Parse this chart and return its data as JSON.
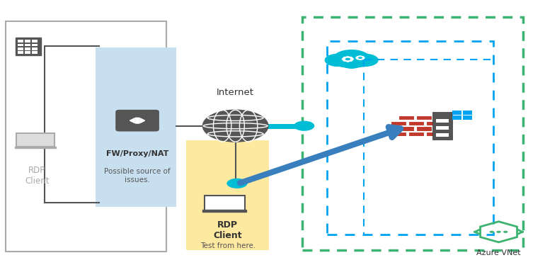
{
  "bg_color": "#ffffff",
  "colors": {
    "green_dashed": "#3cb371",
    "blue_dashed": "#00a4ef",
    "cyan": "#00bcd4",
    "arrow_blue": "#3a7fbd",
    "gray": "#555555",
    "light_blue_bg": "#c8dff0",
    "yellow_bg": "#fde9a0",
    "cloud_blue": "#00bcd4",
    "firewall_red": "#c0392b",
    "server_gray": "#555555",
    "win_blue": "#00a4ef",
    "border_gray": "#aaaaaa"
  },
  "texts": {
    "internet": "Internet",
    "fw_label1": "FW/Proxy/NAT",
    "fw_label2": "Possible source of\nissues.",
    "rdp_left": "RDP\nClient",
    "rdp_right1": "RDP\nClient",
    "rdp_right2": "Test from here.",
    "azure_vnet": "Azure VNet"
  }
}
